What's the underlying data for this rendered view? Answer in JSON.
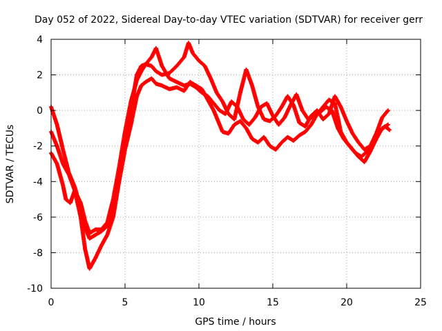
{
  "chart_data": {
    "type": "scatter",
    "title": "Day 052 of 2022, Sidereal Day-to-day VTEC variation (SDTVAR) for receiver gerr",
    "xlabel": "GPS time / hours",
    "ylabel": "SDTVAR / TECUs",
    "xlim": [
      0,
      25
    ],
    "ylim": [
      -10,
      4
    ],
    "xticks": [
      0,
      5,
      10,
      15,
      20,
      25
    ],
    "yticks": [
      -10,
      -8,
      -6,
      -4,
      -2,
      0,
      2,
      4
    ],
    "grid": true,
    "marker": "+",
    "color": "#ff0000",
    "series": [
      {
        "name": "series-1",
        "x": [
          0.0,
          0.4,
          0.8,
          1.2,
          1.6,
          2.0,
          2.3,
          2.6,
          3.0,
          3.4,
          3.8,
          4.2,
          4.6,
          5.0,
          5.4,
          5.8,
          6.1,
          6.4,
          6.8,
          7.1,
          7.5,
          8.0,
          8.5,
          9.0,
          9.4,
          9.8,
          10.2,
          10.6,
          11.0,
          11.3,
          11.6,
          12.0,
          12.4,
          12.8,
          13.2,
          13.6,
          14.0,
          14.4,
          14.8,
          15.2,
          15.6,
          16.0,
          16.4,
          16.8,
          17.2,
          17.6,
          18.0,
          18.4,
          18.8,
          19.2,
          19.6,
          20.0,
          20.4,
          20.8,
          21.2,
          21.6,
          22.0,
          22.4,
          22.8
        ],
        "y": [
          -1.2,
          -2.0,
          -3.0,
          -3.6,
          -4.5,
          -6.0,
          -7.8,
          -8.9,
          -8.3,
          -7.6,
          -7.0,
          -6.0,
          -4.0,
          -2.2,
          -0.8,
          0.8,
          1.4,
          1.6,
          1.8,
          1.5,
          1.4,
          1.2,
          1.3,
          1.1,
          1.6,
          1.4,
          1.2,
          0.6,
          0.0,
          -0.6,
          -1.2,
          -1.3,
          -0.8,
          -0.6,
          -1.0,
          -1.6,
          -1.8,
          -1.5,
          -2.0,
          -2.2,
          -1.8,
          -1.5,
          -1.7,
          -1.4,
          -1.2,
          -0.8,
          -0.2,
          0.2,
          0.6,
          0.4,
          -1.2,
          -1.8,
          -2.2,
          -2.6,
          -2.9,
          -2.3,
          -1.6,
          -1.0,
          -0.8
        ]
      },
      {
        "name": "series-2",
        "x": [
          0.0,
          0.4,
          0.8,
          1.2,
          1.6,
          2.0,
          2.3,
          2.6,
          3.0,
          3.4,
          3.8,
          4.2,
          4.6,
          5.0,
          5.4,
          5.8,
          6.1,
          6.4,
          6.8,
          7.1,
          7.5,
          8.0,
          8.5,
          9.0,
          9.3,
          9.6,
          10.0,
          10.4,
          10.8,
          11.2,
          11.6,
          12.0,
          12.4,
          12.8,
          13.2,
          13.6,
          14.0,
          14.4,
          14.8,
          15.2,
          15.6,
          16.0,
          16.4,
          16.8,
          17.2,
          17.6,
          18.0,
          18.4,
          18.8,
          19.2,
          19.6,
          20.0,
          20.4,
          20.8,
          21.2,
          21.6,
          22.0,
          22.4,
          22.8
        ],
        "y": [
          0.2,
          -0.8,
          -2.2,
          -3.5,
          -4.3,
          -5.5,
          -6.6,
          -7.2,
          -7.0,
          -6.8,
          -6.5,
          -5.5,
          -3.6,
          -1.8,
          0.0,
          2.0,
          2.5,
          2.6,
          2.5,
          2.2,
          2.0,
          2.1,
          2.5,
          3.0,
          3.8,
          3.2,
          2.8,
          2.5,
          1.8,
          1.0,
          0.5,
          -0.2,
          -0.5,
          1.0,
          2.3,
          1.4,
          0.2,
          -0.5,
          -0.6,
          -0.3,
          0.2,
          0.8,
          0.3,
          -0.7,
          -0.9,
          -0.3,
          0.0,
          -0.5,
          -0.2,
          0.8,
          0.2,
          -0.6,
          -1.3,
          -1.8,
          -2.2,
          -2.0,
          -1.3,
          -0.4,
          0.0
        ]
      },
      {
        "name": "series-3",
        "x": [
          0.0,
          0.4,
          0.8,
          1.0,
          1.3,
          1.6,
          2.0,
          2.3,
          2.6,
          3.0,
          3.4,
          3.8,
          4.2,
          4.6,
          5.0,
          5.4,
          5.8,
          6.1,
          6.4,
          6.8,
          7.1,
          7.5,
          8.0,
          8.5,
          9.0,
          9.4,
          9.8,
          10.2,
          10.6,
          11.0,
          11.4,
          11.8,
          12.2,
          12.6,
          13.0,
          13.4,
          13.8,
          14.2,
          14.6,
          15.0,
          15.4,
          15.8,
          16.2,
          16.6,
          17.0,
          17.4,
          17.8,
          18.2,
          18.6,
          19.0,
          19.4,
          19.8,
          20.2,
          20.6,
          21.0,
          21.4,
          21.8,
          22.2,
          22.6,
          22.9
        ],
        "y": [
          -2.4,
          -3.0,
          -4.2,
          -5.0,
          -5.2,
          -4.5,
          -5.2,
          -6.2,
          -6.9,
          -6.7,
          -6.7,
          -6.3,
          -5.0,
          -3.2,
          -1.2,
          0.5,
          1.7,
          2.2,
          2.6,
          3.0,
          3.5,
          2.5,
          1.8,
          1.6,
          1.4,
          1.5,
          1.3,
          1.0,
          0.8,
          0.4,
          0.0,
          -0.2,
          0.5,
          0.2,
          -0.5,
          -0.8,
          -0.4,
          0.2,
          0.4,
          -0.3,
          -0.8,
          -0.4,
          0.3,
          0.9,
          0.0,
          -0.5,
          -0.3,
          -0.1,
          0.2,
          0.0,
          -1.0,
          -1.6,
          -2.0,
          -2.4,
          -2.6,
          -2.3,
          -1.8,
          -1.2,
          -0.9,
          -1.1
        ]
      }
    ]
  }
}
